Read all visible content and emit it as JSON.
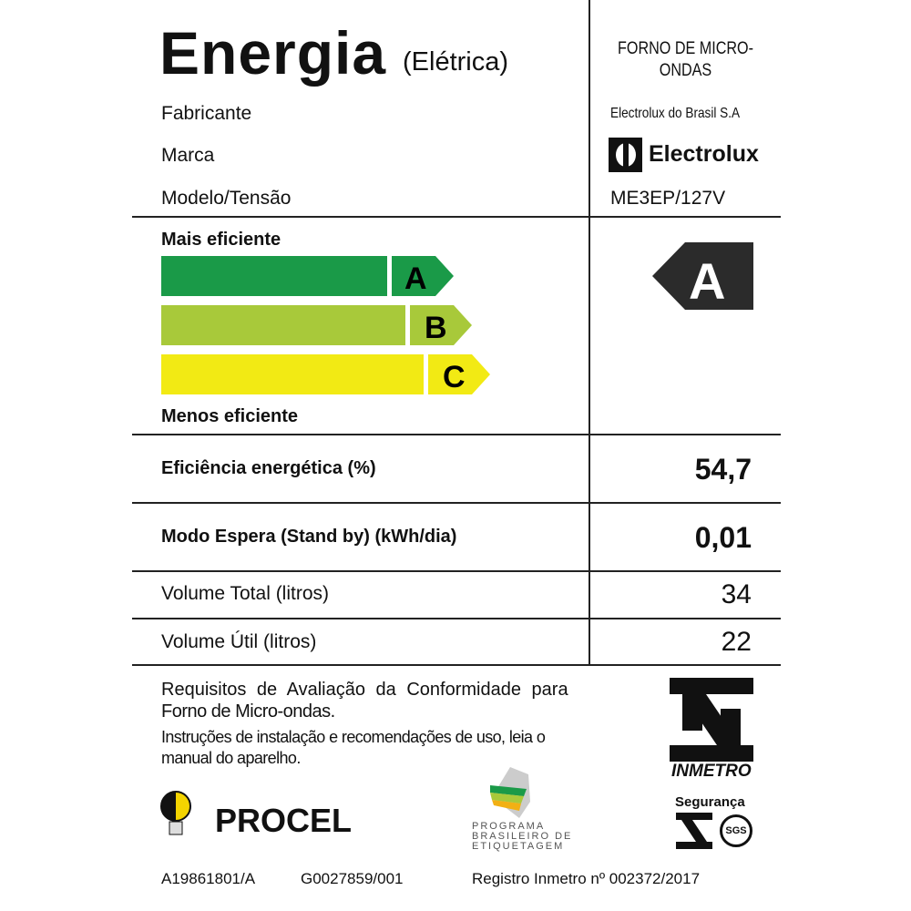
{
  "header": {
    "title": "Energia",
    "subtitle": "(Elétrica)",
    "product_type": "FORNO DE MICRO-ONDAS"
  },
  "fields": [
    {
      "label": "Fabricante",
      "value": "Electrolux do Brasil S.A"
    },
    {
      "label": "Marca",
      "value": "Electrolux"
    },
    {
      "label": "Modelo/Tensão",
      "value": "ME3EP/127V"
    }
  ],
  "efficiency": {
    "top_label": "Mais eficiente",
    "bottom_label": "Menos eficiente",
    "classes": [
      {
        "letter": "A",
        "color": "#1a9a48"
      },
      {
        "letter": "B",
        "color": "#a8c93a"
      },
      {
        "letter": "C",
        "color": "#f2ea14"
      }
    ],
    "rating": "A",
    "rating_color": "#2b2b2b"
  },
  "specs": [
    {
      "label": "Eficiência energética (%)",
      "value": "54,7",
      "bold": true
    },
    {
      "label": "Modo Espera (Stand by) (kWh/dia)",
      "value": "0,01",
      "bold": true
    },
    {
      "label": "Volume Total (litros)",
      "value": "34",
      "bold": false
    },
    {
      "label": "Volume Útil (litros)",
      "value": "22",
      "bold": false
    }
  ],
  "footer": {
    "req_line1": "Requisitos de Avaliação da Conformidade para",
    "req_line2": "Forno de Micro-ondas.",
    "instr_line1": "Instruções de instalação e recomendações de uso, leia o",
    "instr_line2": "manual do aparelho.",
    "procel": "PROCEL",
    "pbe": [
      "PROGRAMA",
      "BRASILEIRO DE",
      "ETIQUETAGEM"
    ],
    "inmetro": "INMETRO",
    "seguranca": "Segurança",
    "sgs": "SGS",
    "code1": "A19861801/A",
    "code2": "G0027859/001",
    "registro": "Registro Inmetro nº 002372/2017"
  }
}
